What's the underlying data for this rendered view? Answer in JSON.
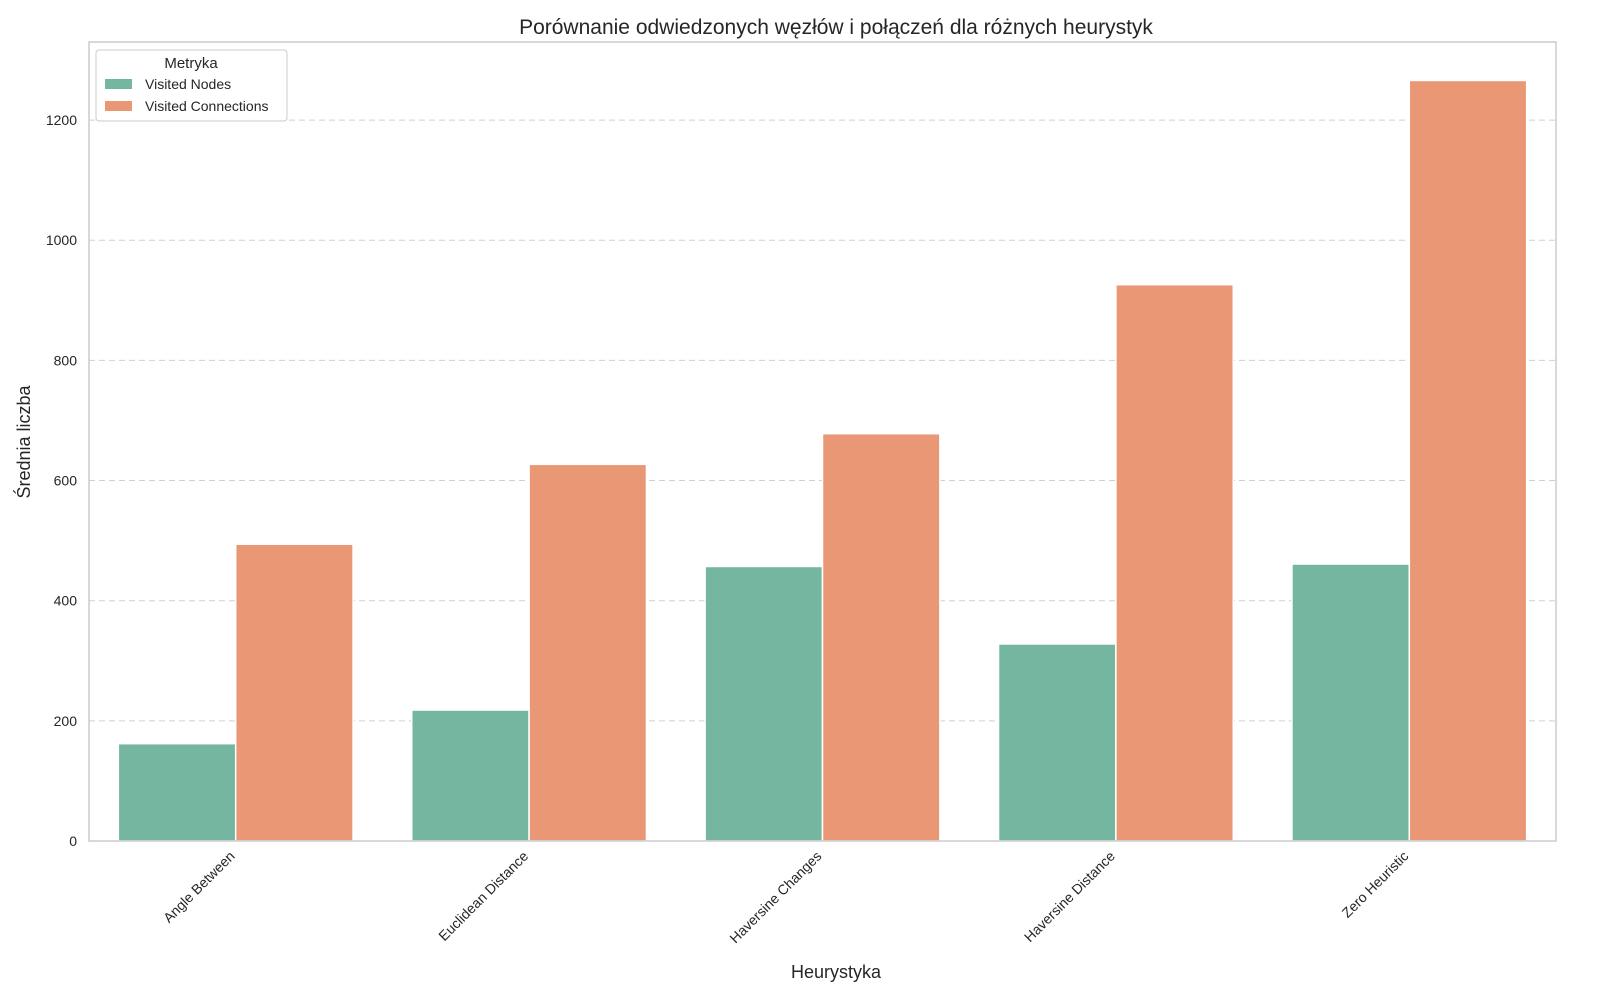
{
  "chart_data": {
    "type": "bar",
    "title": "Porównanie odwiedzonych węzłów i połączeń dla różnych heurystyk",
    "xlabel": "Heurystyka",
    "ylabel": "Średnia liczba",
    "categories": [
      "Angle Between",
      "Euclidean Distance",
      "Haversine Changes",
      "Haversine Distance",
      "Zero Heuristic"
    ],
    "series": [
      {
        "name": "Visited Nodes",
        "values": [
          162,
          218,
          457,
          328,
          461
        ],
        "color": "#75b6a0"
      },
      {
        "name": "Visited Connections",
        "values": [
          494,
          627,
          678,
          926,
          1266
        ],
        "color": "#e99775"
      }
    ],
    "ylim": [
      0,
      1330
    ],
    "yticks": [
      0,
      200,
      400,
      600,
      800,
      1000,
      1200
    ],
    "grid": "y-dashed",
    "legend": {
      "title": "Metryka",
      "placement": "top-left"
    }
  }
}
